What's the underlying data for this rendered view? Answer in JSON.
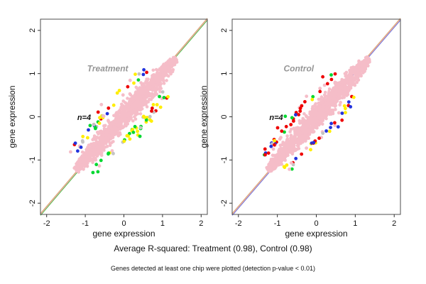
{
  "figure": {
    "background": "#ffffff"
  },
  "footer": {
    "r_squared_line": "Average R-squared: Treatment (0.98), Control (0.98)",
    "detection_note": "Genes detected at least one chip were plotted (detection p-value < 0.01)"
  },
  "chart_data": {
    "type": "scatter",
    "description": "Two replicate-concordance scatter plots of gene expression. A dense pink cloud of genes lies along the y=x identity line in each panel; colored points (red, green, blue, yellow, gray, pink) are genes deviating between replicate chips. n=4 chips per condition.",
    "average_r_squared": {
      "Treatment": 0.98,
      "Control": 0.98
    },
    "panels": [
      {
        "title": "Treatment",
        "title_color": "#969696",
        "annotation": "n=4",
        "xlabel": "gene expression",
        "ylabel": "gene expression",
        "xlim": [
          -2.16,
          2.16
        ],
        "ylim": [
          -2.26,
          2.26
        ],
        "x_ticks": [
          -2,
          -1,
          0,
          1,
          2
        ],
        "y_ticks": [
          -2,
          -1,
          0,
          1,
          2
        ],
        "r_squared": 0.98,
        "title_xy": [
          -0.42,
          1.05
        ],
        "annotation_xy": [
          -1.03,
          -0.07
        ],
        "identity_line": {
          "colors": [
            "#33BB33",
            "#F2B1BC",
            "#DBA97A"
          ]
        },
        "cloud": {
          "color": "#F5BDC8",
          "seed": 42,
          "count": 1400,
          "t_range": [
            -1.24,
            1.35
          ],
          "center": 0.05,
          "half_length": 1.33,
          "max_half_width": 0.33
        },
        "outliers": {
          "seed": 7,
          "count": 95,
          "t_range": [
            -1.12,
            0.85
          ],
          "above_fraction": 0.5,
          "above_weights": [
            [
              "#2233DD",
              0.26
            ],
            [
              "#FFEE00",
              0.22
            ],
            [
              "#F5BDC8",
              0.2
            ],
            [
              "#EE0000",
              0.12
            ],
            [
              "#C3C3C3",
              0.12
            ],
            [
              "#00D830",
              0.08
            ]
          ],
          "below_weights": [
            [
              "#00D830",
              0.38
            ],
            [
              "#FFEE00",
              0.28
            ],
            [
              "#C3C3C3",
              0.14
            ],
            [
              "#F5BDC8",
              0.12
            ],
            [
              "#EE0000",
              0.08
            ]
          ]
        }
      },
      {
        "title": "Control",
        "title_color": "#969696",
        "annotation": "n=4",
        "xlabel": "gene expression",
        "ylabel": "gene expression",
        "xlim": [
          -2.16,
          2.16
        ],
        "ylim": [
          -2.26,
          2.26
        ],
        "x_ticks": [
          -2,
          -1,
          0,
          1,
          2
        ],
        "y_ticks": [
          -2,
          -1,
          0,
          1,
          2
        ],
        "r_squared": 0.98,
        "title_xy": [
          -0.45,
          1.05
        ],
        "annotation_xy": [
          -1.03,
          -0.07
        ],
        "identity_line": {
          "colors": [
            "#5566DD",
            "#F2B1BC",
            "#DBA97A"
          ]
        },
        "cloud": {
          "color": "#F5BDC8",
          "seed": 99,
          "count": 1400,
          "t_range": [
            -1.24,
            1.35
          ],
          "center": 0.05,
          "half_length": 1.33,
          "max_half_width": 0.32
        },
        "outliers": {
          "seed": 11,
          "count": 85,
          "t_range": [
            -1.12,
            0.85
          ],
          "above_fraction": 0.55,
          "above_weights": [
            [
              "#EE0000",
              0.48
            ],
            [
              "#2233DD",
              0.14
            ],
            [
              "#00D830",
              0.12
            ],
            [
              "#FFEE00",
              0.1
            ],
            [
              "#F5BDC8",
              0.1
            ],
            [
              "#C3C3C3",
              0.06
            ]
          ],
          "below_weights": [
            [
              "#2233DD",
              0.2
            ],
            [
              "#FFEE00",
              0.24
            ],
            [
              "#EE0000",
              0.2
            ],
            [
              "#F5BDC8",
              0.2
            ],
            [
              "#C3C3C3",
              0.1
            ],
            [
              "#00D830",
              0.06
            ]
          ]
        }
      }
    ]
  }
}
